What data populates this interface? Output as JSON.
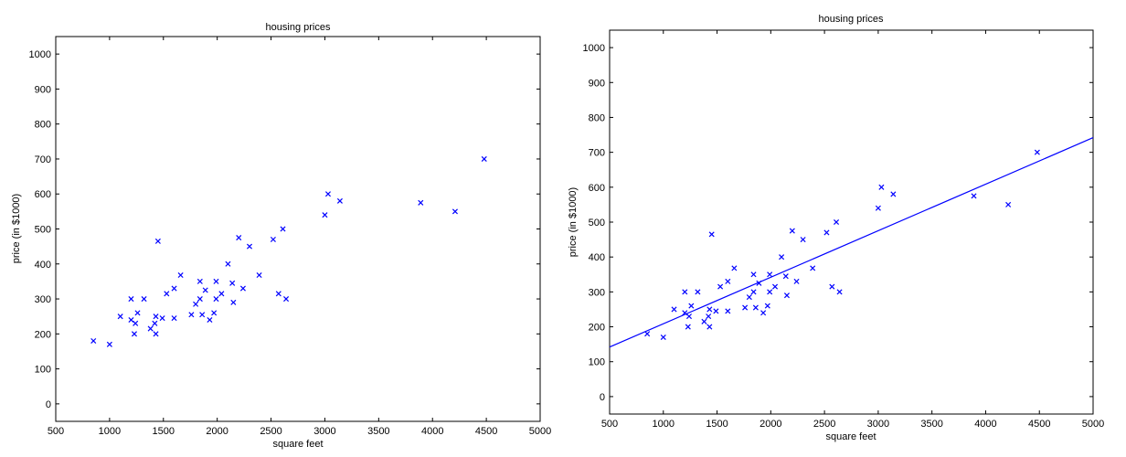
{
  "chart_data": [
    {
      "type": "scatter",
      "title": "housing prices",
      "xlabel": "square feet",
      "ylabel": "price (in $1000)",
      "xlim": [
        500,
        5000
      ],
      "ylim": [
        -50,
        1050
      ],
      "xticks": [
        500,
        1000,
        1500,
        2000,
        2500,
        3000,
        3500,
        4000,
        4500,
        5000
      ],
      "yticks": [
        0,
        100,
        200,
        300,
        400,
        500,
        600,
        700,
        800,
        900,
        1000
      ],
      "grid": false,
      "marker": "x",
      "color": "#0000ff",
      "points": [
        [
          850,
          180
        ],
        [
          1000,
          170
        ],
        [
          1100,
          250
        ],
        [
          1200,
          300
        ],
        [
          1200,
          240
        ],
        [
          1230,
          200
        ],
        [
          1240,
          230
        ],
        [
          1260,
          260
        ],
        [
          1320,
          300
        ],
        [
          1380,
          215
        ],
        [
          1420,
          230
        ],
        [
          1430,
          200
        ],
        [
          1430,
          250
        ],
        [
          1450,
          465
        ],
        [
          1490,
          245
        ],
        [
          1530,
          315
        ],
        [
          1600,
          330
        ],
        [
          1600,
          245
        ],
        [
          1660,
          368
        ],
        [
          1760,
          255
        ],
        [
          1800,
          285
        ],
        [
          1840,
          300
        ],
        [
          1840,
          350
        ],
        [
          1860,
          255
        ],
        [
          1890,
          325
        ],
        [
          1930,
          240
        ],
        [
          1970,
          260
        ],
        [
          1990,
          350
        ],
        [
          1990,
          300
        ],
        [
          2040,
          315
        ],
        [
          2100,
          400
        ],
        [
          2140,
          345
        ],
        [
          2150,
          290
        ],
        [
          2200,
          475
        ],
        [
          2240,
          330
        ],
        [
          2300,
          450
        ],
        [
          2390,
          368
        ],
        [
          2520,
          470
        ],
        [
          2570,
          315
        ],
        [
          2610,
          500
        ],
        [
          2640,
          300
        ],
        [
          3000,
          540
        ],
        [
          3030,
          600
        ],
        [
          3140,
          580
        ],
        [
          3890,
          575
        ],
        [
          4210,
          550
        ],
        [
          4480,
          700
        ]
      ]
    },
    {
      "type": "scatter",
      "title": "housing prices",
      "xlabel": "square feet",
      "ylabel": "price (in $1000)",
      "xlim": [
        500,
        5000
      ],
      "ylim": [
        -50,
        1050
      ],
      "xticks": [
        500,
        1000,
        1500,
        2000,
        2500,
        3000,
        3500,
        4000,
        4500,
        5000
      ],
      "yticks": [
        0,
        100,
        200,
        300,
        400,
        500,
        600,
        700,
        800,
        900,
        1000
      ],
      "grid": false,
      "marker": "x",
      "color": "#0000ff",
      "fit_line": {
        "x": [
          500,
          5000
        ],
        "y": [
          142,
          742
        ],
        "color": "#0000ff"
      },
      "points": [
        [
          850,
          180
        ],
        [
          1000,
          170
        ],
        [
          1100,
          250
        ],
        [
          1200,
          300
        ],
        [
          1200,
          240
        ],
        [
          1230,
          200
        ],
        [
          1240,
          230
        ],
        [
          1260,
          260
        ],
        [
          1320,
          300
        ],
        [
          1380,
          215
        ],
        [
          1420,
          230
        ],
        [
          1430,
          200
        ],
        [
          1430,
          250
        ],
        [
          1450,
          465
        ],
        [
          1490,
          245
        ],
        [
          1530,
          315
        ],
        [
          1600,
          330
        ],
        [
          1600,
          245
        ],
        [
          1660,
          368
        ],
        [
          1760,
          255
        ],
        [
          1800,
          285
        ],
        [
          1840,
          300
        ],
        [
          1840,
          350
        ],
        [
          1860,
          255
        ],
        [
          1890,
          325
        ],
        [
          1930,
          240
        ],
        [
          1970,
          260
        ],
        [
          1990,
          350
        ],
        [
          1990,
          300
        ],
        [
          2040,
          315
        ],
        [
          2100,
          400
        ],
        [
          2140,
          345
        ],
        [
          2150,
          290
        ],
        [
          2200,
          475
        ],
        [
          2240,
          330
        ],
        [
          2300,
          450
        ],
        [
          2390,
          368
        ],
        [
          2520,
          470
        ],
        [
          2570,
          315
        ],
        [
          2610,
          500
        ],
        [
          2640,
          300
        ],
        [
          3000,
          540
        ],
        [
          3030,
          600
        ],
        [
          3140,
          580
        ],
        [
          3890,
          575
        ],
        [
          4210,
          550
        ],
        [
          4480,
          700
        ]
      ]
    }
  ]
}
